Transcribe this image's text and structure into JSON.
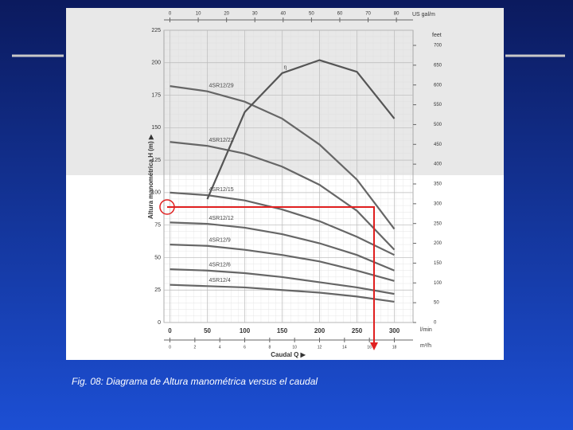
{
  "chart_data": {
    "type": "line",
    "y_label": "Altura manométrica H (m) ▶",
    "x_label": "Caudal Q ▶",
    "x_unit": "l/min",
    "y2_unit": "feet",
    "x2_unit": "US gal/m",
    "x3_unit": "m³/h",
    "x": [
      0,
      50,
      100,
      150,
      200,
      250,
      300
    ],
    "xlim": [
      -8,
      325
    ],
    "xticks": [
      0,
      50,
      100,
      150,
      200,
      250,
      300
    ],
    "ylim": [
      0,
      225
    ],
    "yticks": [
      0,
      25,
      50,
      75,
      100,
      125,
      150,
      175,
      200,
      225
    ],
    "y2lim": [
      0,
      738.2
    ],
    "y2ticks": [
      0,
      50,
      100,
      150,
      200,
      250,
      300,
      350,
      400,
      450,
      500,
      550,
      600,
      650,
      700
    ],
    "x2lim": [
      -2.11,
      85.87
    ],
    "x2ticks": [
      0,
      10,
      20,
      30,
      40,
      50,
      60,
      70,
      80
    ],
    "x3lim": [
      -0.48,
      19.5
    ],
    "x3ticks": [
      0,
      2,
      4,
      6,
      8,
      10,
      12,
      14,
      16,
      18
    ],
    "grid": true,
    "series": [
      {
        "name": "4SR12/29",
        "color": "#666666",
        "values": [
          182,
          178,
          170,
          157,
          137,
          110,
          72
        ]
      },
      {
        "name": "4SR12/22",
        "color": "#666666",
        "values": [
          139,
          136,
          130,
          120,
          106,
          86,
          56
        ]
      },
      {
        "name": "4SR12/15",
        "color": "#666666",
        "values": [
          100,
          98,
          94,
          87,
          78,
          66,
          52
        ]
      },
      {
        "name": "4SR12/12",
        "color": "#666666",
        "values": [
          77,
          76,
          73,
          68,
          61,
          52,
          40
        ]
      },
      {
        "name": "4SR12/9",
        "color": "#666666",
        "values": [
          60,
          59,
          56,
          52,
          47,
          40,
          32
        ]
      },
      {
        "name": "4SR12/6",
        "color": "#666666",
        "values": [
          41,
          40,
          38,
          35,
          31,
          27,
          22
        ]
      },
      {
        "name": "4SR12/4",
        "color": "#666666",
        "values": [
          29,
          28,
          27,
          25,
          23,
          20,
          16
        ]
      },
      {
        "name": "η",
        "color": "#555555",
        "values": [
          null,
          95,
          162,
          192,
          202,
          193,
          157
        ]
      }
    ]
  },
  "caption": "Fig. 08: Diagrama de Altura manométrica versus el caudal"
}
